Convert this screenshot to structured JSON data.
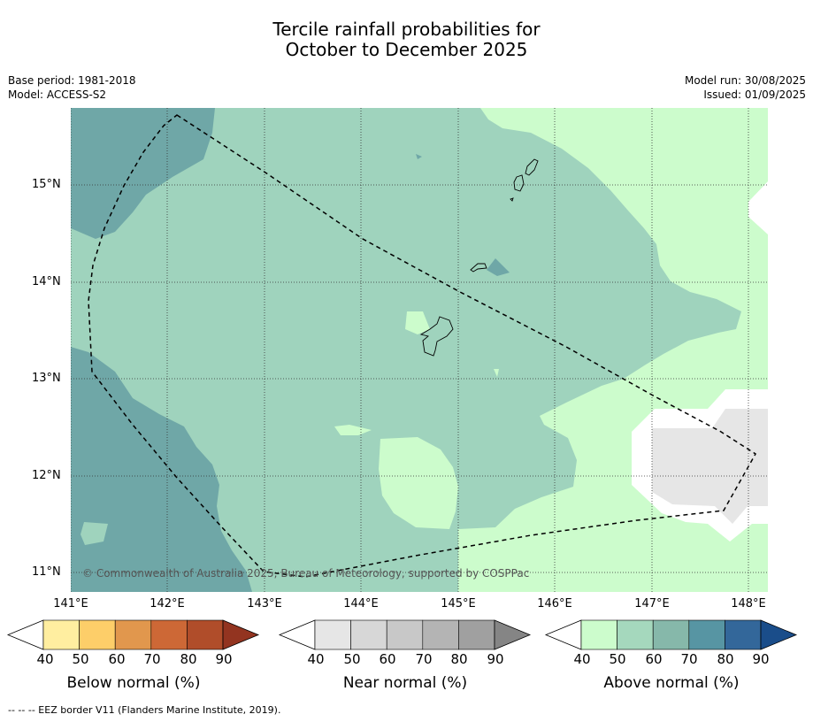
{
  "title": {
    "line1": "Tercile rainfall probabilities for",
    "line2": "October to December 2025"
  },
  "meta": {
    "base_period": "Base period: 1981-2018",
    "model": "Model: ACCESS-S2",
    "model_run": "Model run: 30/08/2025",
    "issued": "Issued: 01/09/2025"
  },
  "map": {
    "lat_labels": [
      "15°N",
      "14°N",
      "13°N",
      "12°N",
      "11°N"
    ],
    "lon_labels": [
      "141°E",
      "142°E",
      "143°E",
      "144°E",
      "145°E",
      "146°E",
      "147°E",
      "148°E"
    ],
    "copyright": "© Commonwealth of Australia 2025, Bureau of Meteorology, supported by COSPPac",
    "colors": {
      "above_50": "#ccfccc",
      "above_60_mid": "#9fd3bd",
      "above_70_dark": "#6fa7a7",
      "near_normal": "#e6e6e6"
    }
  },
  "colorbars": {
    "below": {
      "label": "Below normal (%)",
      "ticks": [
        "40",
        "50",
        "60",
        "70",
        "80",
        "90"
      ],
      "colors": [
        "#ffffff",
        "#ffeea0",
        "#fdce69",
        "#e1974d",
        "#cd6836",
        "#b04d2a",
        "#933420"
      ]
    },
    "near": {
      "label": "Near normal (%)",
      "ticks": [
        "40",
        "50",
        "60",
        "70",
        "80",
        "90"
      ],
      "colors": [
        "#ffffff",
        "#e6e6e6",
        "#d7d7d7",
        "#c8c8c8",
        "#b4b4b4",
        "#a0a0a0",
        "#858585"
      ]
    },
    "above": {
      "label": "Above normal (%)",
      "ticks": [
        "40",
        "50",
        "60",
        "70",
        "80",
        "90"
      ],
      "colors": [
        "#ffffff",
        "#ccfccc",
        "#a5d8bd",
        "#86b8aa",
        "#5795a3",
        "#33679a",
        "#1a4d8a"
      ]
    }
  },
  "footnote": "--  --  -- EEZ border V11 (Flanders Marine Institute, 2019)."
}
